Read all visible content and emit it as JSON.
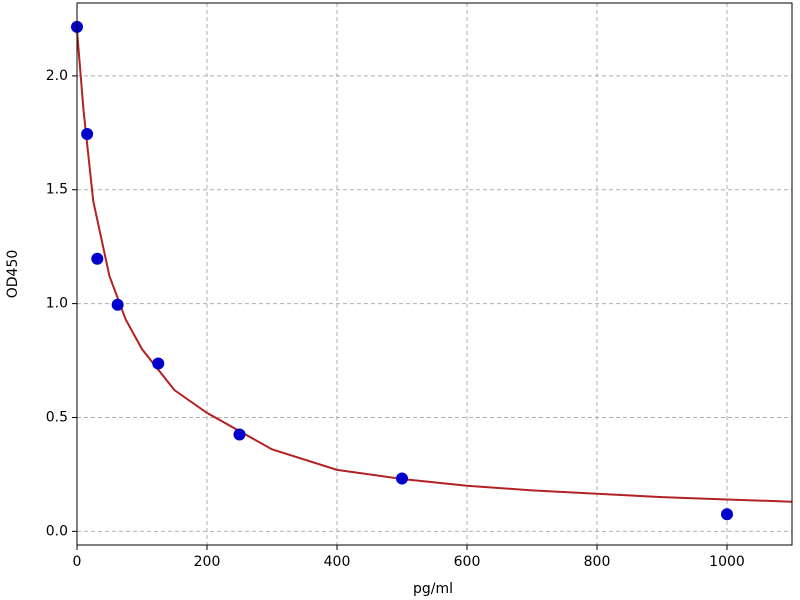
{
  "chart_data": {
    "type": "scatter",
    "x_label": "pg/ml",
    "y_label": "OD450",
    "xlim": [
      0,
      1100
    ],
    "ylim": [
      -0.06,
      2.32
    ],
    "xticks": [
      0,
      200,
      400,
      600,
      800,
      1000
    ],
    "yticks": [
      {
        "value": 0,
        "label": "0.0"
      },
      0.5,
      {
        "value": 1,
        "label": "1.0"
      },
      1.5,
      {
        "value": 2,
        "label": "2.0"
      }
    ],
    "grid": true,
    "points": {
      "color": "#0000cd",
      "x": [
        0,
        15.6,
        31.25,
        62.5,
        125,
        250,
        500,
        1000
      ],
      "y": [
        2.215,
        1.745,
        1.197,
        0.995,
        0.737,
        0.425,
        0.232,
        0.075
      ]
    },
    "curve": {
      "color": "#b22222",
      "x": [
        0,
        10,
        25,
        50,
        75,
        100,
        150,
        200,
        300,
        400,
        500,
        600,
        700,
        800,
        900,
        1000,
        1100
      ],
      "y": [
        2.2,
        1.85,
        1.45,
        1.12,
        0.93,
        0.8,
        0.62,
        0.52,
        0.36,
        0.27,
        0.23,
        0.2,
        0.18,
        0.165,
        0.15,
        0.14,
        0.13
      ]
    }
  }
}
